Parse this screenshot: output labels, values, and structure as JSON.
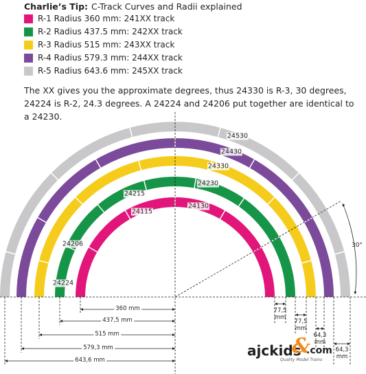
{
  "header": {
    "tip": "Charlie’s Tip:",
    "title": "C-Track Curves and Radii explained"
  },
  "legend": [
    {
      "label": "R-1 Radius 360 mm: 241XX track"
    },
    {
      "label": "R-2 Radius 437.5 mm: 242XX track"
    },
    {
      "label": "R-3 Radius 515 mm: 243XX track"
    },
    {
      "label": "R-4 Radius 579.3 mm: 244XX track"
    },
    {
      "label": "R-5 Radius 643.6 mm: 245XX track"
    }
  ],
  "paragraph": "The XX gives you the approximate degrees, thus 24330 is R-3, 30 degrees, 24224 is R-2, 24.3 degrees. A 24224 and 24206 put together are identical to a 24230.",
  "track_labels": [
    "24530",
    "24430",
    "24330",
    "24230",
    "24130",
    "24215",
    "24115",
    "24206",
    "24224"
  ],
  "dimensions": {
    "radii": [
      "360 mm",
      "437,5 mm",
      "515 mm",
      "579,3 mm",
      "643,6 mm"
    ],
    "spacing": [
      "77,5 mm",
      "77,5 mm",
      "64,3 mm",
      "64,3 mm"
    ],
    "angle": "30°"
  },
  "logo": {
    "name": "ajckids",
    "amp": "&",
    "domain": ".com",
    "tagline": "Quality Model Trains"
  }
}
